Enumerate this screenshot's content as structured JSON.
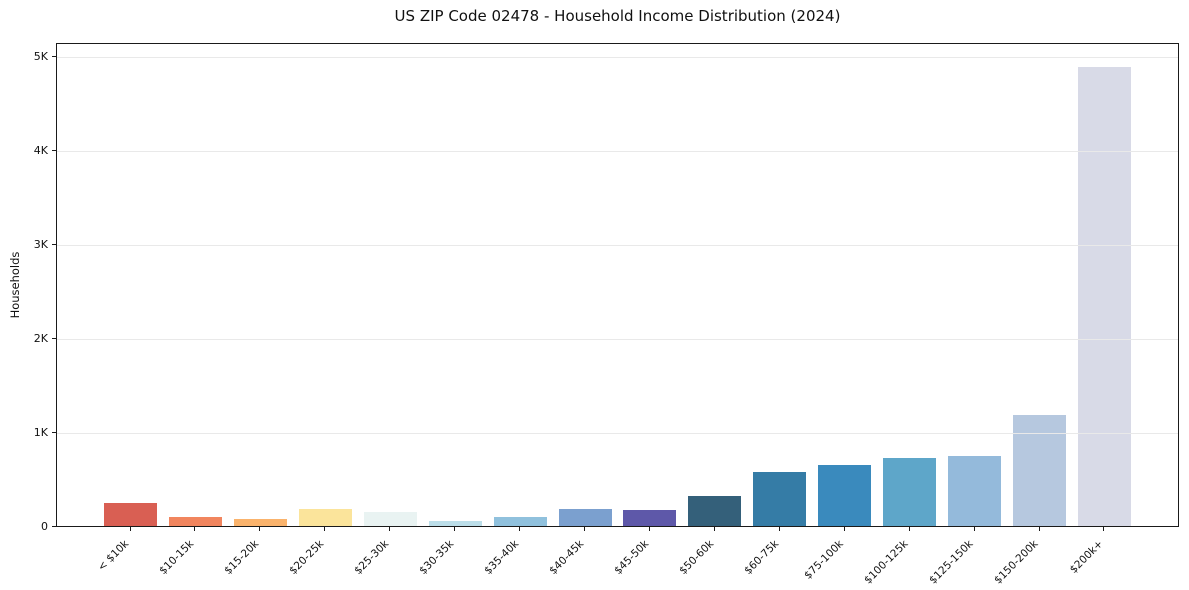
{
  "chart_data": {
    "type": "bar",
    "title": "US ZIP Code 02478 - Household Income Distribution (2024)",
    "xlabel": "",
    "ylabel": "Households",
    "categories": [
      "< $10k",
      "$10-15k",
      "$15-20k",
      "$20-25k",
      "$25-30k",
      "$30-35k",
      "$35-40k",
      "$40-45k",
      "$45-50k",
      "$50-60k",
      "$60-75k",
      "$75-100k",
      "$100-125k",
      "$125-150k",
      "$150-200k",
      "$200k+"
    ],
    "values": [
      250,
      100,
      75,
      180,
      145,
      50,
      95,
      180,
      170,
      320,
      570,
      650,
      720,
      740,
      1185,
      4885
    ],
    "bar_colors": [
      "#d95f53",
      "#f1855e",
      "#fab36c",
      "#fbe49b",
      "#e9f3f2",
      "#bcdee9",
      "#90c1dd",
      "#7ba0cf",
      "#5e58a9",
      "#34607a",
      "#357ca6",
      "#3a8abd",
      "#5ea6c9",
      "#94badb",
      "#b6c8df",
      "#d8dae7"
    ],
    "yticks": [
      {
        "value": 0,
        "label": "0"
      },
      {
        "value": 1000,
        "label": "1K"
      },
      {
        "value": 2000,
        "label": "2K"
      },
      {
        "value": 3000,
        "label": "3K"
      },
      {
        "value": 4000,
        "label": "4K"
      },
      {
        "value": 5000,
        "label": "5K"
      }
    ],
    "ylim": [
      0,
      5150
    ],
    "grid": "horizontal",
    "grid_color": "#e9e9e9",
    "legend": "none",
    "x_tick_rotation_deg": 45
  }
}
